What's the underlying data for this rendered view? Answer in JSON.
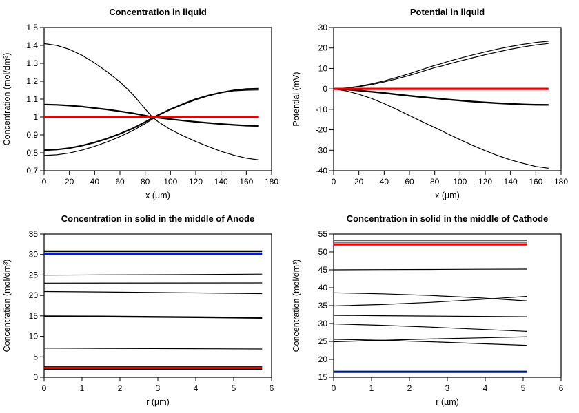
{
  "page": {
    "background": "#ffffff",
    "curve_color": "#000000",
    "red_accent": "#e80000"
  },
  "chart_data": [
    {
      "type": "line",
      "title": "Concentration in liquid",
      "xlabel": "x (µm)",
      "ylabel": "Concentration (mol/dm³)",
      "xlim": [
        0,
        180
      ],
      "ylim": [
        0.7,
        1.5
      ],
      "xticks": [
        0,
        20,
        40,
        60,
        80,
        100,
        120,
        140,
        160,
        180
      ],
      "yticks": [
        0.7,
        0.8,
        0.9,
        1,
        1.1,
        1.2,
        1.3,
        1.4,
        1.5
      ],
      "grid": false,
      "legend": "none",
      "series": [
        {
          "name": "curve-1",
          "color": "#000000",
          "width": 1.2,
          "x": [
            0,
            10,
            20,
            30,
            40,
            50,
            60,
            70,
            80,
            85,
            90,
            100,
            110,
            120,
            130,
            140,
            150,
            160,
            170
          ],
          "y": [
            1.41,
            1.4,
            1.378,
            1.345,
            1.302,
            1.252,
            1.196,
            1.128,
            1.045,
            1.005,
            0.975,
            0.93,
            0.895,
            0.863,
            0.835,
            0.808,
            0.787,
            0.77,
            0.76
          ]
        },
        {
          "name": "curve-2",
          "color": "#000000",
          "width": 2.2,
          "x": [
            0,
            10,
            20,
            30,
            40,
            50,
            60,
            70,
            80,
            85,
            90,
            100,
            110,
            120,
            130,
            140,
            150,
            160,
            170
          ],
          "y": [
            1.07,
            1.068,
            1.064,
            1.058,
            1.05,
            1.042,
            1.032,
            1.021,
            1.008,
            1.001,
            0.996,
            0.988,
            0.98,
            0.973,
            0.967,
            0.961,
            0.956,
            0.952,
            0.95
          ]
        },
        {
          "name": "curve-3",
          "color": "#000000",
          "width": 2.2,
          "x": [
            0,
            10,
            20,
            30,
            40,
            50,
            60,
            70,
            80,
            85,
            90,
            100,
            110,
            120,
            130,
            140,
            150,
            160,
            170
          ],
          "y": [
            0.815,
            0.818,
            0.826,
            0.84,
            0.858,
            0.88,
            0.906,
            0.936,
            0.972,
            0.992,
            1.01,
            1.043,
            1.072,
            1.098,
            1.12,
            1.137,
            1.149,
            1.156,
            1.158
          ]
        },
        {
          "name": "curve-4",
          "color": "#000000",
          "width": 1.2,
          "x": [
            0,
            10,
            20,
            30,
            40,
            50,
            60,
            70,
            80,
            85,
            90,
            100,
            110,
            120,
            130,
            140,
            150,
            160,
            170
          ],
          "y": [
            0.785,
            0.789,
            0.799,
            0.815,
            0.836,
            0.861,
            0.89,
            0.924,
            0.963,
            0.985,
            1.006,
            1.043,
            1.075,
            1.102,
            1.122,
            1.137,
            1.146,
            1.15,
            1.151
          ]
        },
        {
          "name": "red-line",
          "color": "#e80000",
          "width": 3.2,
          "x": [
            0,
            170
          ],
          "y": [
            1,
            1
          ]
        }
      ]
    },
    {
      "type": "line",
      "title": "Potential in liquid",
      "xlabel": "x (µm)",
      "ylabel": "Potential (mV)",
      "xlim": [
        0,
        180
      ],
      "ylim": [
        -40,
        30
      ],
      "xticks": [
        0,
        20,
        40,
        60,
        80,
        100,
        120,
        140,
        160,
        180
      ],
      "yticks": [
        -40,
        -30,
        -20,
        -10,
        0,
        10,
        20,
        30
      ],
      "grid": false,
      "legend": "none",
      "series": [
        {
          "name": "curve-1",
          "color": "#000000",
          "width": 1.2,
          "x": [
            0,
            10,
            20,
            30,
            40,
            50,
            60,
            70,
            80,
            85,
            90,
            100,
            110,
            120,
            130,
            140,
            150,
            160,
            170
          ],
          "y": [
            0,
            0.5,
            1.3,
            2.5,
            3.9,
            5.6,
            7.5,
            9.5,
            11.5,
            12.3,
            13.3,
            15.0,
            16.6,
            18.1,
            19.5,
            20.7,
            21.8,
            22.7,
            23.3
          ]
        },
        {
          "name": "curve-2",
          "color": "#000000",
          "width": 1.2,
          "x": [
            0,
            10,
            20,
            30,
            40,
            50,
            60,
            70,
            80,
            85,
            90,
            100,
            110,
            120,
            130,
            140,
            150,
            160,
            170
          ],
          "y": [
            0,
            0.4,
            1.1,
            2.1,
            3.4,
            4.9,
            6.6,
            8.5,
            10.4,
            11.1,
            12.0,
            13.6,
            15.2,
            16.7,
            18.1,
            19.4,
            20.5,
            21.5,
            22.2
          ]
        },
        {
          "name": "curve-3",
          "color": "#000000",
          "width": 2.4,
          "x": [
            0,
            10,
            20,
            30,
            40,
            50,
            60,
            70,
            80,
            85,
            90,
            100,
            110,
            120,
            130,
            140,
            150,
            160,
            170
          ],
          "y": [
            0,
            -0.3,
            -0.8,
            -1.4,
            -2.0,
            -2.7,
            -3.4,
            -4.0,
            -4.6,
            -4.9,
            -5.2,
            -5.7,
            -6.2,
            -6.6,
            -7.0,
            -7.3,
            -7.6,
            -7.75,
            -7.8
          ]
        },
        {
          "name": "curve-4",
          "color": "#000000",
          "width": 1.2,
          "x": [
            0,
            10,
            20,
            30,
            40,
            50,
            60,
            70,
            80,
            85,
            90,
            100,
            110,
            120,
            130,
            140,
            150,
            160,
            170
          ],
          "y": [
            0,
            -1.0,
            -2.6,
            -4.7,
            -7.2,
            -10.0,
            -13.0,
            -16.0,
            -18.9,
            -20.3,
            -21.9,
            -24.8,
            -27.6,
            -30.2,
            -32.6,
            -34.7,
            -36.4,
            -37.9,
            -38.8
          ]
        },
        {
          "name": "red-line",
          "color": "#e80000",
          "width": 3.2,
          "x": [
            0,
            170
          ],
          "y": [
            0,
            0
          ]
        }
      ]
    },
    {
      "type": "line",
      "title": "Concentration in solid in the middle of Anode",
      "xlabel": "r (µm)",
      "ylabel": "Concentration (mol/dm³)",
      "xlim": [
        0,
        6
      ],
      "ylim": [
        0,
        35
      ],
      "xticks": [
        0,
        1,
        2,
        3,
        4,
        5,
        6
      ],
      "yticks": [
        0,
        5,
        10,
        15,
        20,
        25,
        30,
        35
      ],
      "grid": false,
      "legend": "none",
      "series": [
        {
          "name": "line-1",
          "color": "#000000",
          "width": 2.4,
          "x": [
            0,
            5.75
          ],
          "y": [
            30.8,
            30.8
          ]
        },
        {
          "name": "blue-line",
          "color": "#0a14e6",
          "width": 3.2,
          "x": [
            0,
            5.75
          ],
          "y": [
            30.15,
            30.15
          ]
        },
        {
          "name": "line-2",
          "color": "#000000",
          "width": 1.2,
          "x": [
            0,
            1.44,
            2.88,
            4.31,
            5.75
          ],
          "y": [
            24.95,
            25.0,
            25.05,
            25.12,
            25.2
          ]
        },
        {
          "name": "line-3",
          "color": "#000000",
          "width": 1.2,
          "x": [
            0,
            5.75
          ],
          "y": [
            23.0,
            23.05
          ]
        },
        {
          "name": "line-4",
          "color": "#000000",
          "width": 1.2,
          "x": [
            0,
            1.44,
            2.88,
            4.31,
            5.75
          ],
          "y": [
            20.95,
            20.85,
            20.72,
            20.6,
            20.45
          ]
        },
        {
          "name": "line-5",
          "color": "#000000",
          "width": 2.4,
          "x": [
            0,
            1.44,
            2.88,
            4.31,
            5.75
          ],
          "y": [
            14.9,
            14.85,
            14.75,
            14.65,
            14.5
          ]
        },
        {
          "name": "line-6",
          "color": "#000000",
          "width": 1.2,
          "x": [
            0,
            1.44,
            2.88,
            4.31,
            5.75
          ],
          "y": [
            7.1,
            7.05,
            7.0,
            6.95,
            6.9
          ]
        },
        {
          "name": "line-7",
          "color": "#000000",
          "width": 1.2,
          "x": [
            0,
            5.75
          ],
          "y": [
            2.65,
            2.65
          ]
        },
        {
          "name": "red-line",
          "color": "#e80000",
          "width": 3.2,
          "x": [
            0,
            5.75
          ],
          "y": [
            2.3,
            2.3
          ]
        },
        {
          "name": "line-8",
          "color": "#000000",
          "width": 1.2,
          "x": [
            0,
            5.75
          ],
          "y": [
            1.95,
            1.95
          ]
        }
      ]
    },
    {
      "type": "line",
      "title": "Concentration in solid in the middle of Cathode",
      "xlabel": "r (µm)",
      "ylabel": "Concentration (mol/dm³)",
      "xlim": [
        0,
        6
      ],
      "ylim": [
        15,
        55
      ],
      "xticks": [
        0,
        1,
        2,
        3,
        4,
        5,
        6
      ],
      "yticks": [
        15,
        20,
        25,
        30,
        35,
        40,
        45,
        50,
        55
      ],
      "grid": false,
      "legend": "none",
      "series": [
        {
          "name": "line-1",
          "color": "#000000",
          "width": 1.6,
          "x": [
            0,
            5.1
          ],
          "y": [
            53.3,
            53.3
          ]
        },
        {
          "name": "line-2",
          "color": "#000000",
          "width": 1.6,
          "x": [
            0,
            5.1
          ],
          "y": [
            52.75,
            52.75
          ]
        },
        {
          "name": "red-line",
          "color": "#e80000",
          "width": 3.2,
          "x": [
            0,
            5.1
          ],
          "y": [
            52.1,
            52.1
          ]
        },
        {
          "name": "line-3",
          "color": "#000000",
          "width": 1.2,
          "x": [
            0,
            1.28,
            2.55,
            3.83,
            5.1
          ],
          "y": [
            45.0,
            45.05,
            45.1,
            45.15,
            45.2
          ]
        },
        {
          "name": "line-4",
          "color": "#000000",
          "width": 1.2,
          "x": [
            0,
            1.28,
            2.55,
            3.83,
            5.1
          ],
          "y": [
            38.6,
            38.3,
            37.85,
            37.2,
            36.3
          ]
        },
        {
          "name": "line-5",
          "color": "#000000",
          "width": 1.2,
          "x": [
            0,
            1.28,
            2.55,
            3.83,
            5.1
          ],
          "y": [
            34.9,
            35.3,
            35.9,
            36.7,
            37.6
          ]
        },
        {
          "name": "line-6",
          "color": "#000000",
          "width": 1.2,
          "x": [
            0,
            1.28,
            2.55,
            3.83,
            5.1
          ],
          "y": [
            32.3,
            32.2,
            32.1,
            32.0,
            31.9
          ]
        },
        {
          "name": "line-7",
          "color": "#000000",
          "width": 1.2,
          "x": [
            0,
            1.28,
            2.55,
            3.83,
            5.1
          ],
          "y": [
            29.9,
            29.5,
            29.0,
            28.4,
            27.8
          ]
        },
        {
          "name": "line-8",
          "color": "#000000",
          "width": 1.2,
          "x": [
            0,
            1.28,
            2.55,
            3.83,
            5.1
          ],
          "y": [
            24.9,
            25.3,
            25.7,
            26.0,
            26.3
          ]
        },
        {
          "name": "line-9",
          "color": "#000000",
          "width": 1.2,
          "x": [
            0,
            1.28,
            2.55,
            3.83,
            5.1
          ],
          "y": [
            25.6,
            25.3,
            24.9,
            24.4,
            23.9
          ]
        },
        {
          "name": "blue-line",
          "color": "#00148c",
          "width": 3.2,
          "x": [
            0,
            5.1
          ],
          "y": [
            16.5,
            16.5
          ]
        }
      ]
    }
  ]
}
